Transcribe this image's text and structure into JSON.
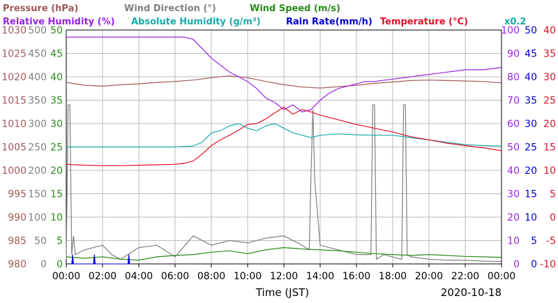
{
  "chart_data": {
    "type": "line",
    "xlabel": "Time (JST)",
    "date": "2020-10-18",
    "x_ticks": [
      "00:00",
      "02:00",
      "04:00",
      "06:00",
      "08:00",
      "10:00",
      "12:00",
      "14:00",
      "16:00",
      "18:00",
      "20:00",
      "22:00",
      "00:00"
    ],
    "header": {
      "row1": [
        {
          "text": "Pressure (hPa)",
          "color": "#a05a5a"
        },
        {
          "text": "Wind Direction (°)",
          "color": "#808080"
        },
        {
          "text": "Wind Speed (m/s)",
          "color": "#2a8a1a"
        }
      ],
      "row2": [
        {
          "text": "Relative Humidity (%)",
          "color": "#9a22e0"
        },
        {
          "text": "Absolute Humidity (g/m³)",
          "color": "#1aaaaa"
        },
        {
          "text": "Rain Rate(mm/h)",
          "color": "#0000cc"
        },
        {
          "text": "Temperature (°C)",
          "color": "#e0102a"
        },
        {
          "text": "x0.2",
          "color": "#1aaaaa"
        }
      ]
    },
    "axes": {
      "pressure": {
        "ticks": [
          "1030",
          "1025",
          "1020",
          "1015",
          "1010",
          "1005",
          "1000",
          "995",
          "990",
          "985",
          "980"
        ],
        "range": [
          980,
          1030
        ],
        "color": "#a05a5a"
      },
      "wind_dir": {
        "ticks": [
          "500",
          "450",
          "400",
          "350",
          "300",
          "250",
          "200",
          "150",
          "100",
          "50",
          "0"
        ],
        "range": [
          0,
          500
        ],
        "color": "#808080"
      },
      "wind_speed": {
        "ticks": [
          "50",
          "45",
          "40",
          "35",
          "30",
          "25",
          "20",
          "15",
          "10",
          "5",
          "0"
        ],
        "range": [
          0,
          50
        ],
        "color": "#2a8a1a"
      },
      "humidity": {
        "ticks": [
          "100",
          "90",
          "80",
          "70",
          "60",
          "50",
          "40",
          "30",
          "20",
          "10",
          "0"
        ],
        "range": [
          0,
          100
        ],
        "color": "#9a22e0"
      },
      "rain": {
        "ticks": [
          "50",
          "45",
          "40",
          "35",
          "30",
          "25",
          "20",
          "15",
          "10",
          "5",
          "0"
        ],
        "range": [
          0,
          50
        ],
        "color": "#0000cc"
      },
      "temperature": {
        "ticks": [
          "40",
          "35",
          "30",
          "25",
          "20",
          "15",
          "10",
          "5",
          "0",
          "-5",
          "-10"
        ],
        "range": [
          -10,
          40
        ],
        "color": "#e0102a"
      }
    },
    "series": [
      {
        "name": "Relative Humidity (%)",
        "axis": "humidity",
        "color": "#9a22e0",
        "x": [
          0,
          1,
          2,
          3,
          4,
          5,
          6,
          6.5,
          7,
          7.5,
          8,
          8.5,
          9,
          9.5,
          10,
          10.5,
          11,
          11.5,
          12,
          12.5,
          13,
          13.5,
          14,
          14.5,
          15,
          15.5,
          16,
          16.5,
          17,
          18,
          19,
          20,
          21,
          22,
          23,
          24
        ],
        "y": [
          97,
          97,
          97,
          97,
          97,
          97,
          97,
          97,
          96,
          92,
          88,
          85,
          82,
          80,
          78,
          75,
          71,
          69,
          66,
          68,
          65,
          66,
          70,
          73,
          75,
          76,
          77,
          78,
          78,
          79,
          80,
          81,
          82,
          83,
          83,
          84
        ]
      },
      {
        "name": "Temperature (°C)",
        "axis": "temperature",
        "color": "#e0102a",
        "x": [
          0,
          1,
          2,
          3,
          4,
          5,
          6,
          6.5,
          7,
          7.5,
          8,
          8.5,
          9,
          9.5,
          10,
          10.5,
          11,
          11.5,
          12,
          12.5,
          13,
          13.5,
          14,
          15,
          16,
          17,
          18,
          19,
          20,
          21,
          22,
          23,
          24
        ],
        "y": [
          11.3,
          11.1,
          11.0,
          11.0,
          11.1,
          11.2,
          11.3,
          11.5,
          12.0,
          13.5,
          15.3,
          16.5,
          17.5,
          18.6,
          19.8,
          20.0,
          21.0,
          22.3,
          23.5,
          22.0,
          23.0,
          22.5,
          21.8,
          20.8,
          19.8,
          19.0,
          18.2,
          17.2,
          16.5,
          15.8,
          15.3,
          14.8,
          14.2
        ]
      },
      {
        "name": "Pressure (hPa)",
        "axis": "pressure",
        "color": "#a05a5a",
        "x": [
          0,
          1,
          2,
          3,
          4,
          5,
          6,
          7,
          8,
          9,
          10,
          11,
          12,
          13,
          14,
          15,
          16,
          17,
          18,
          19,
          20,
          21,
          22,
          23,
          24
        ],
        "y": [
          1018.8,
          1018.2,
          1018.0,
          1018.3,
          1018.5,
          1018.8,
          1019.0,
          1019.3,
          1019.8,
          1020.2,
          1019.8,
          1019.0,
          1018.3,
          1017.8,
          1017.6,
          1017.9,
          1018.2,
          1018.6,
          1018.9,
          1019.2,
          1019.3,
          1019.2,
          1019.1,
          1019.0,
          1018.7
        ]
      },
      {
        "name": "Absolute Humidity (g/m³) x0.2",
        "axis": "wind_speed",
        "color": "#1aaaaa",
        "x": [
          0,
          1,
          2,
          3,
          4,
          5,
          6,
          7,
          7.5,
          8,
          8.5,
          9,
          9.5,
          10,
          10.5,
          11,
          11.5,
          12,
          12.5,
          13,
          13.5,
          14,
          15,
          16,
          17,
          18,
          19,
          20,
          21,
          22,
          23,
          24
        ],
        "y": [
          25.0,
          25.0,
          25.0,
          25.0,
          25.0,
          25.0,
          25.0,
          25.2,
          26.0,
          28.0,
          28.5,
          29.5,
          30.0,
          29.0,
          28.5,
          29.5,
          30.0,
          29.0,
          28.0,
          27.5,
          27.0,
          27.5,
          27.8,
          27.6,
          27.5,
          27.5,
          27.0,
          26.5,
          26.0,
          25.5,
          25.3,
          25.2
        ]
      },
      {
        "name": "Wind Direction (°)",
        "axis": "wind_dir",
        "color": "#808080",
        "x": [
          0,
          0.1,
          0.2,
          0.3,
          0.4,
          0.5,
          1,
          2,
          2.5,
          3,
          4,
          5,
          6,
          7,
          8,
          9,
          10,
          11,
          12,
          13,
          13.4,
          13.5,
          13.6,
          13.7,
          14,
          15,
          16,
          16.8,
          16.9,
          17,
          17.1,
          17.5,
          18.5,
          18.6,
          18.7,
          18.8,
          19,
          20,
          21,
          22,
          23,
          24
        ],
        "y": [
          10,
          340,
          340,
          20,
          60,
          20,
          30,
          40,
          20,
          10,
          35,
          40,
          15,
          60,
          40,
          50,
          45,
          55,
          60,
          40,
          30,
          200,
          330,
          180,
          40,
          30,
          20,
          20,
          340,
          340,
          10,
          20,
          10,
          340,
          340,
          20,
          15,
          10,
          8,
          8,
          6,
          5
        ]
      },
      {
        "name": "Wind Speed (m/s)",
        "axis": "wind_speed",
        "color": "#2a8a1a",
        "x": [
          0,
          1,
          2,
          3,
          4,
          5,
          6,
          7,
          8,
          9,
          10,
          11,
          12,
          13,
          14,
          15,
          16,
          17,
          18,
          19,
          20,
          21,
          22,
          23,
          24
        ],
        "y": [
          1.5,
          1.2,
          1.5,
          1.0,
          0.8,
          1.5,
          1.8,
          2.0,
          2.5,
          2.8,
          2.2,
          3.0,
          3.5,
          3.2,
          3.0,
          2.8,
          2.5,
          2.2,
          2.0,
          1.8,
          2.0,
          1.8,
          1.6,
          1.5,
          1.4
        ]
      },
      {
        "name": "Rain Rate(mm/h)",
        "axis": "rain",
        "color": "#0000cc",
        "x": [
          0.3,
          0.35,
          0.4,
          1.5,
          1.55,
          1.6,
          3.4,
          3.45,
          3.5
        ],
        "y": [
          0,
          2,
          0,
          0,
          2,
          0,
          0,
          2,
          0
        ]
      }
    ],
    "xlim": [
      0,
      24
    ],
    "grid": true
  }
}
